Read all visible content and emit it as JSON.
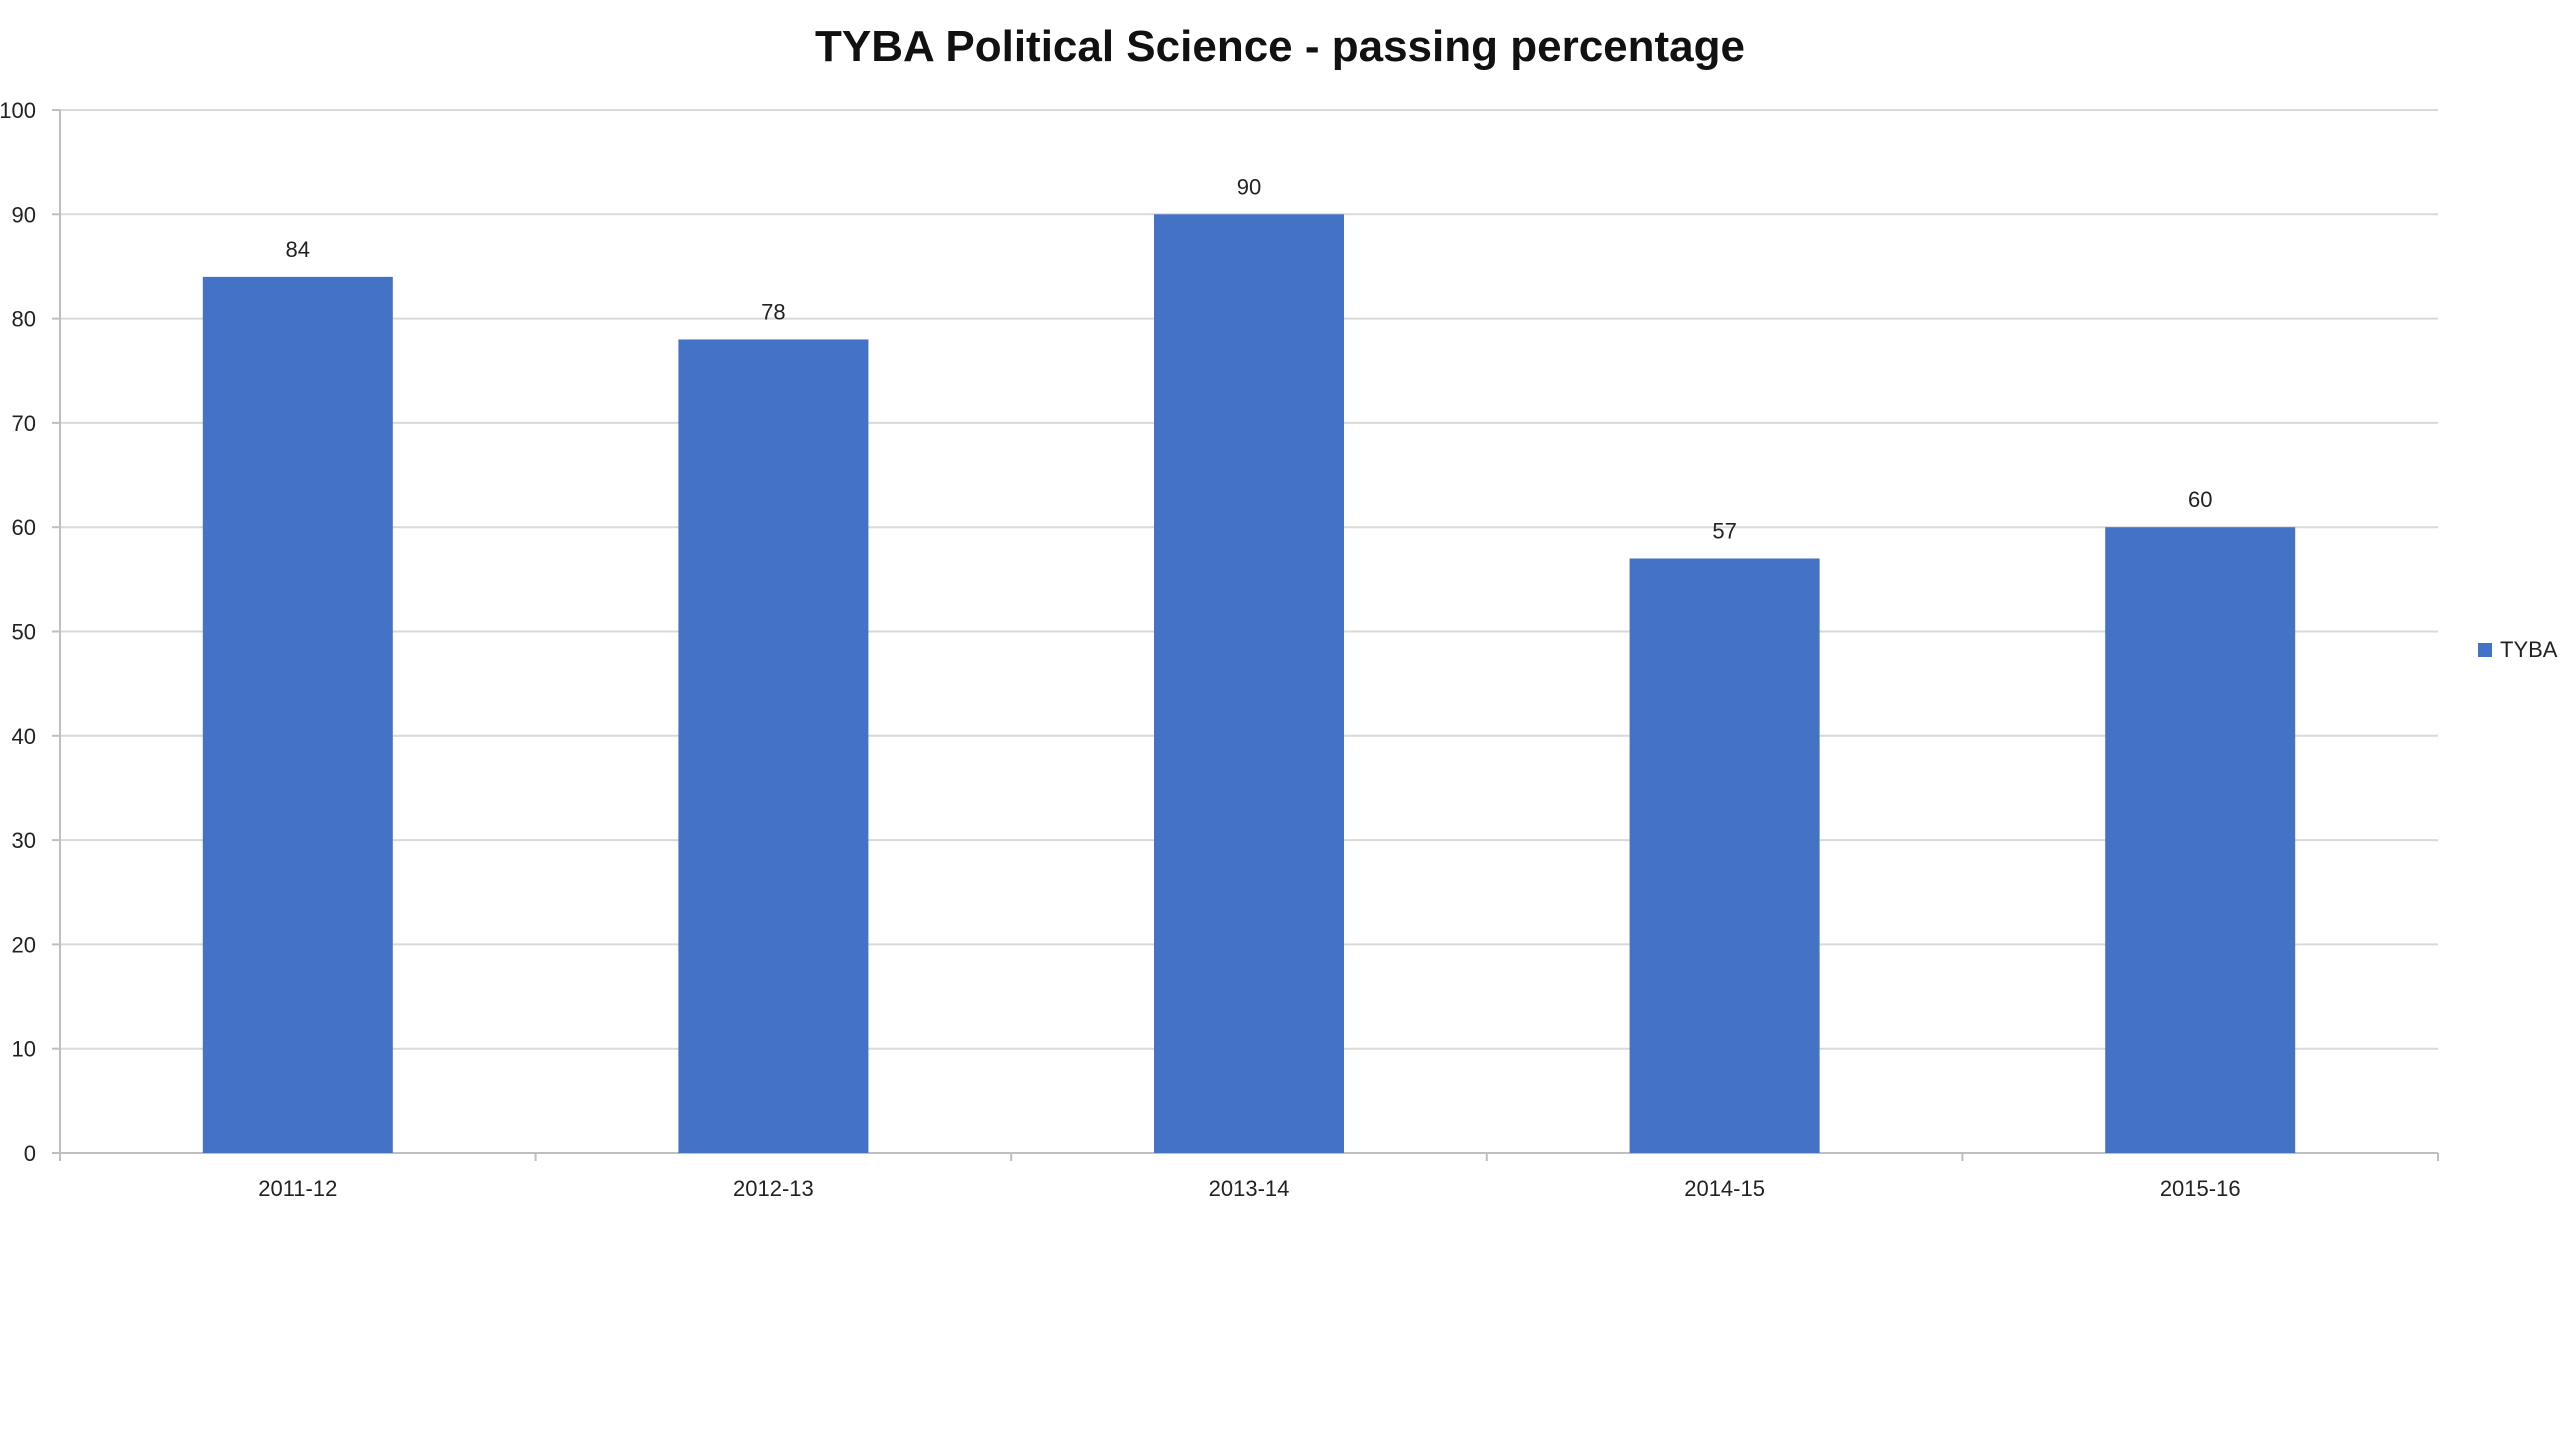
{
  "chart_data": {
    "type": "bar",
    "title": "TYBA Political Science - passing percentage",
    "xlabel": "",
    "ylabel": "",
    "categories": [
      "2011-12",
      "2012-13",
      "2013-14",
      "2014-15",
      "2015-16"
    ],
    "series": [
      {
        "name": "TYBA",
        "values": [
          84,
          78,
          90,
          57,
          60
        ]
      }
    ],
    "ylim": [
      0,
      100
    ],
    "yticks": [
      0,
      10,
      20,
      30,
      40,
      50,
      60,
      70,
      80,
      90,
      100
    ],
    "grid": true,
    "legend": "right",
    "data_labels": true,
    "colors": {
      "bar": "#4472C4",
      "grid": "#D9D9D9",
      "axis": "#BFBFBF"
    }
  }
}
